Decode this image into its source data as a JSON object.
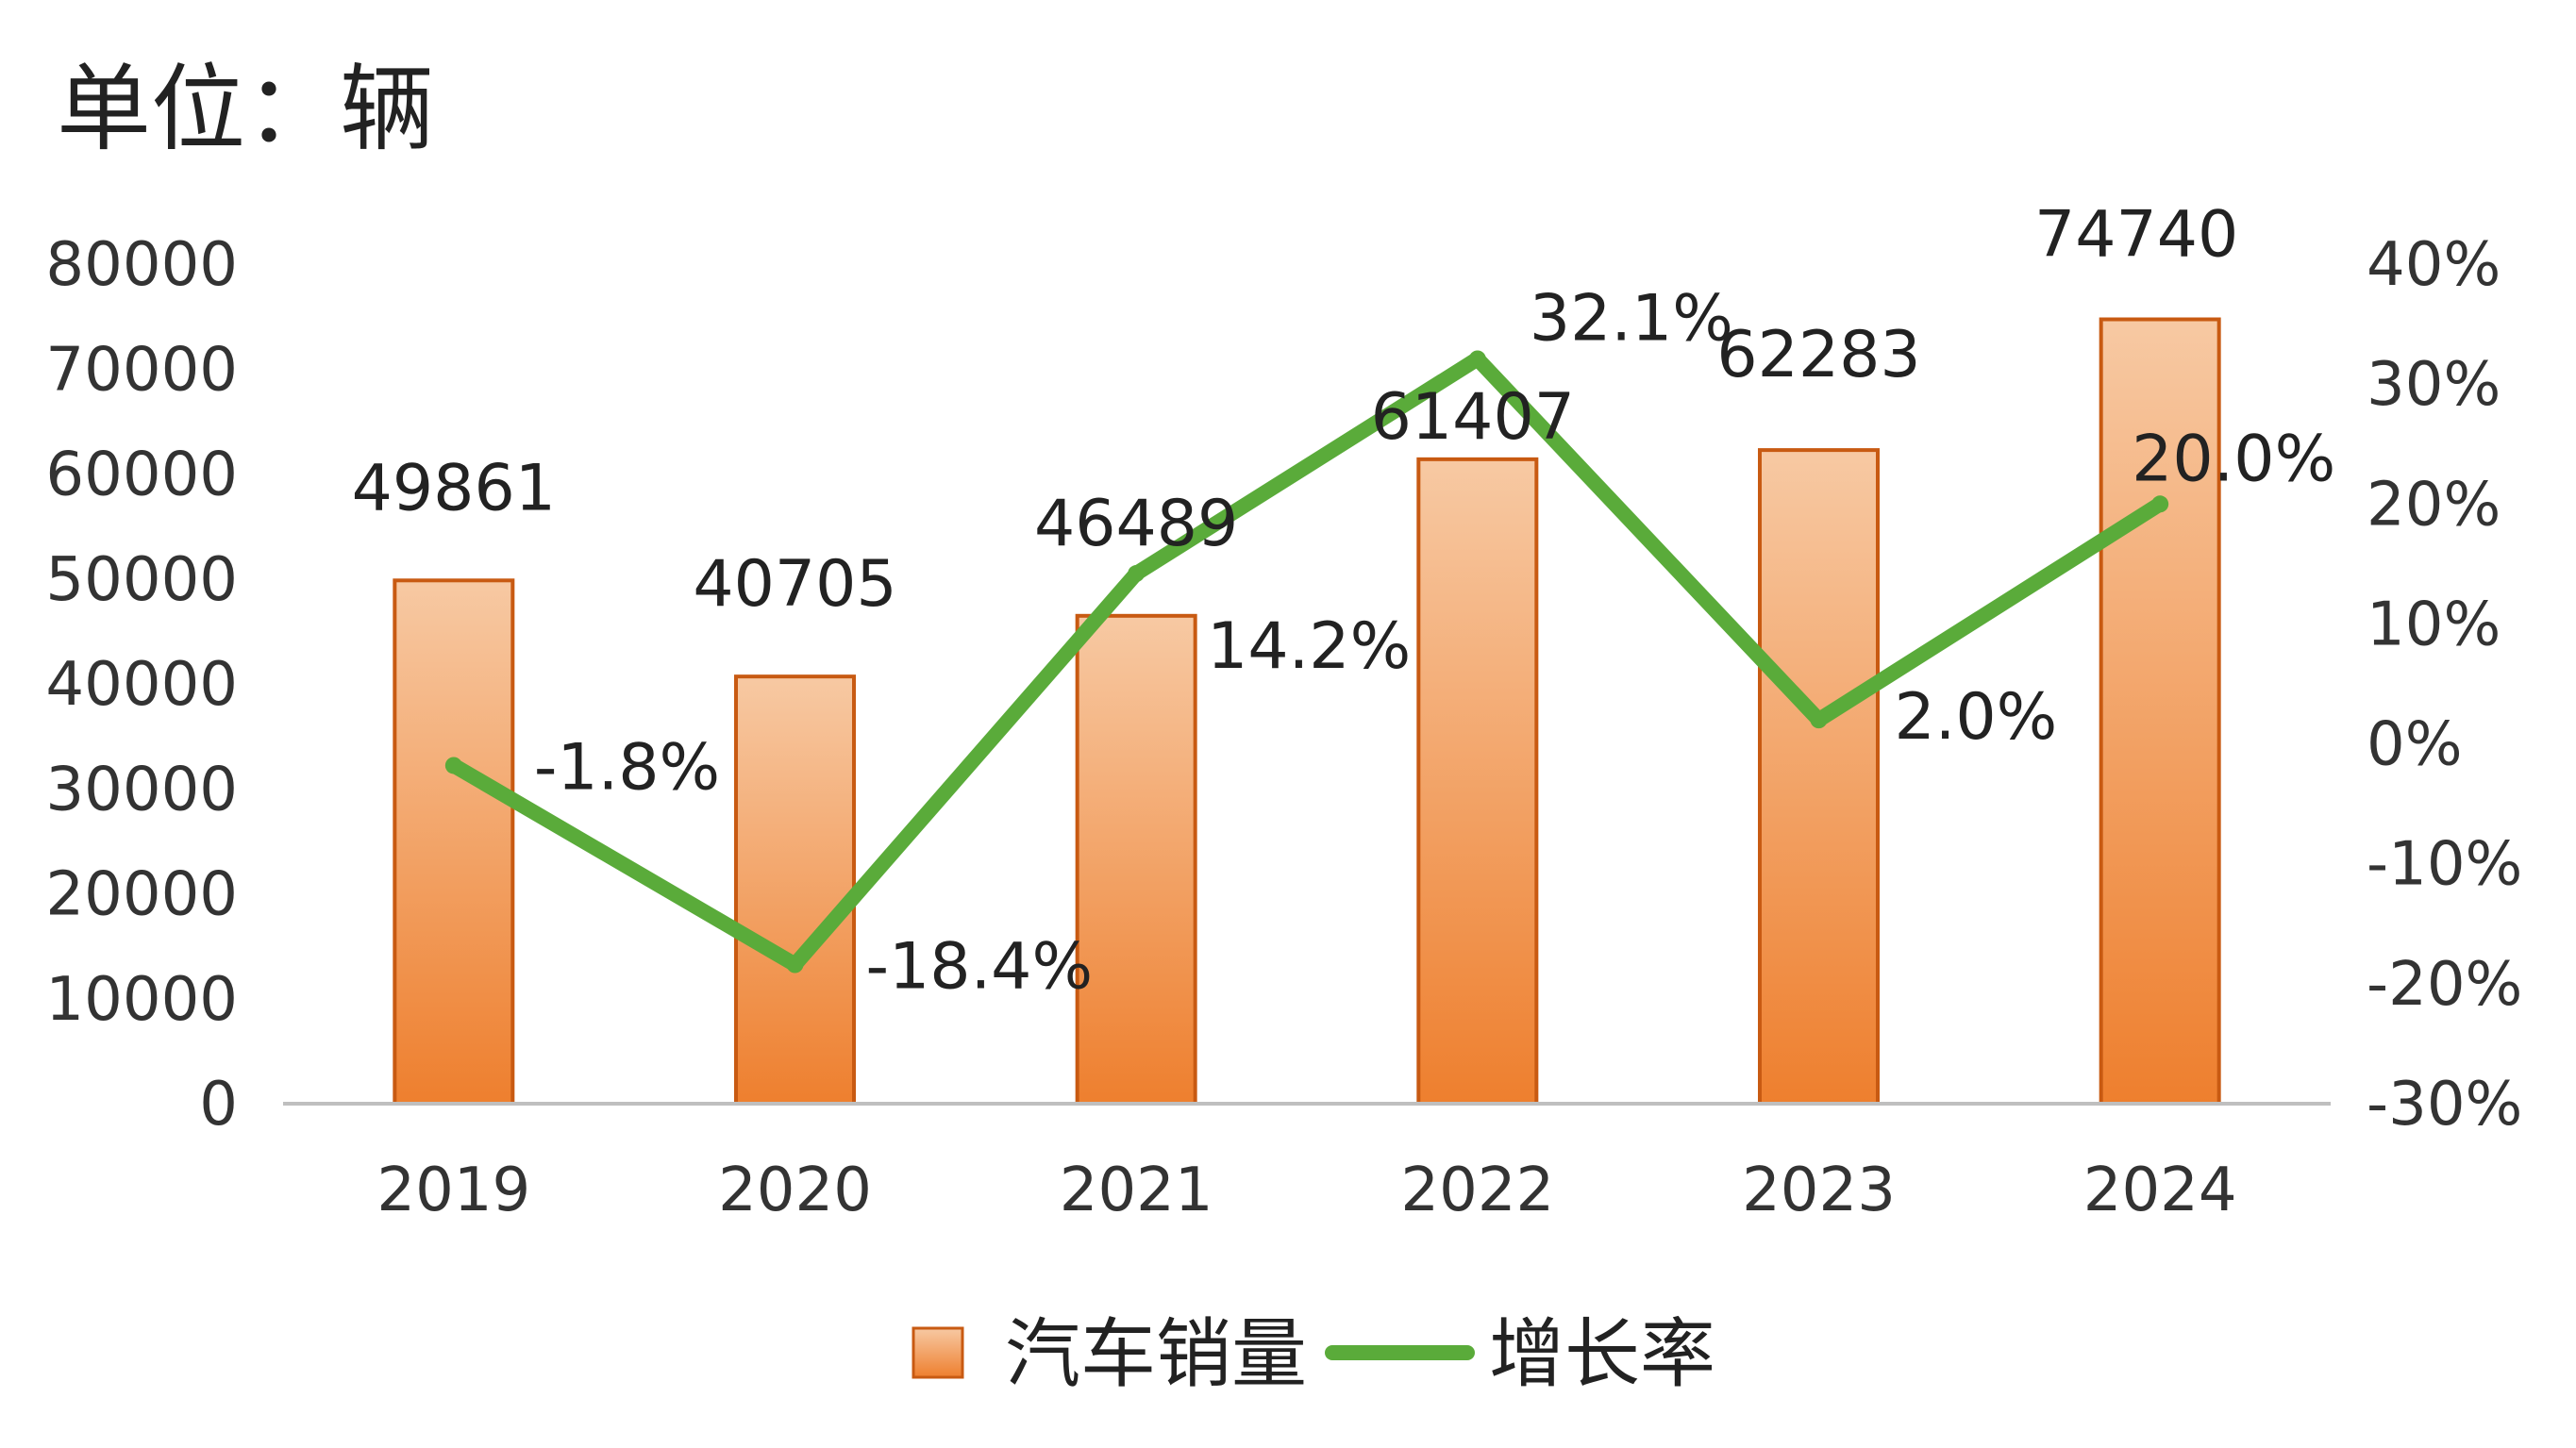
{
  "chart_data": {
    "type": "bar",
    "unit_label": "单位：辆",
    "categories": [
      "2019",
      "2020",
      "2021",
      "2022",
      "2023",
      "2024"
    ],
    "series": [
      {
        "name": "汽车销量",
        "type": "bar",
        "axis": "left",
        "values": [
          49861,
          40705,
          46489,
          61407,
          62283,
          74740
        ],
        "labels": [
          "49861",
          "40705",
          "46489",
          "61407",
          "62283",
          "74740"
        ]
      },
      {
        "name": "增长率",
        "type": "line",
        "axis": "right",
        "values": [
          -1.8,
          -18.4,
          14.2,
          32.1,
          2.0,
          20.0
        ],
        "labels": [
          "-1.8%",
          "-18.4%",
          "14.2%",
          "32.1%",
          "2.0%",
          "20.0%"
        ]
      }
    ],
    "left_axis": {
      "ylim": [
        0,
        80000
      ],
      "ticks": [
        "0",
        "10000",
        "20000",
        "30000",
        "40000",
        "50000",
        "60000",
        "70000",
        "80000"
      ]
    },
    "right_axis": {
      "ylim": [
        -30,
        40
      ],
      "ticks": [
        "-30%",
        "-20%",
        "-10%",
        "0%",
        "10%",
        "20%",
        "30%",
        "40%"
      ]
    },
    "legend": {
      "placement": "bottom",
      "items": [
        "汽车销量",
        "增长率"
      ]
    },
    "grid": false,
    "colors": {
      "bar_top": "#f7c9a3",
      "bar_bottom": "#ee7f2e",
      "bar_stroke": "#c85a12",
      "line": "#5aab3a",
      "axis": "#bfbfbf"
    }
  }
}
